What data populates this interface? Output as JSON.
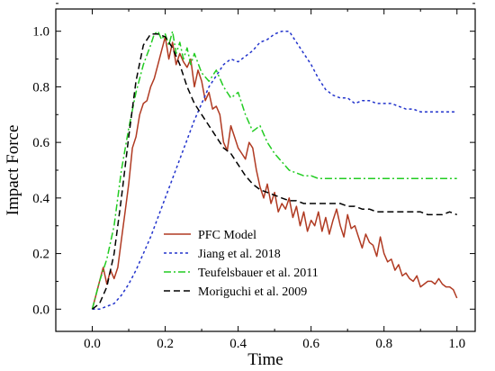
{
  "chart_data": {
    "type": "line",
    "title": "",
    "xlabel": "Time",
    "ylabel": "Impact Force",
    "xlim": [
      -0.1,
      1.05
    ],
    "ylim": [
      -0.08,
      1.08
    ],
    "xticks": [
      0.0,
      0.2,
      0.4,
      0.6,
      0.8,
      1.0
    ],
    "xtick_labels": [
      "0.0",
      "0.2",
      "0.4",
      "0.6",
      "0.8",
      "1.0"
    ],
    "yticks": [
      0.0,
      0.2,
      0.4,
      0.6,
      0.8,
      1.0
    ],
    "ytick_labels": [
      "0.0",
      "0.2",
      "0.4",
      "0.6",
      "0.8",
      "1.0"
    ],
    "grid": false,
    "legend_position": "bottom-center",
    "series": [
      {
        "name": "PFC Model",
        "color": "#b03a22",
        "dash": "solid",
        "x": [
          0.0,
          0.01,
          0.02,
          0.03,
          0.04,
          0.05,
          0.06,
          0.07,
          0.08,
          0.09,
          0.1,
          0.11,
          0.12,
          0.13,
          0.14,
          0.15,
          0.16,
          0.17,
          0.18,
          0.19,
          0.2,
          0.21,
          0.22,
          0.23,
          0.24,
          0.25,
          0.26,
          0.27,
          0.28,
          0.29,
          0.3,
          0.31,
          0.32,
          0.33,
          0.34,
          0.35,
          0.36,
          0.37,
          0.38,
          0.39,
          0.4,
          0.41,
          0.42,
          0.43,
          0.44,
          0.45,
          0.46,
          0.47,
          0.48,
          0.49,
          0.5,
          0.51,
          0.52,
          0.53,
          0.54,
          0.55,
          0.56,
          0.57,
          0.58,
          0.59,
          0.6,
          0.61,
          0.62,
          0.63,
          0.64,
          0.65,
          0.66,
          0.67,
          0.68,
          0.69,
          0.7,
          0.71,
          0.72,
          0.73,
          0.74,
          0.75,
          0.76,
          0.77,
          0.78,
          0.79,
          0.8,
          0.81,
          0.82,
          0.83,
          0.84,
          0.85,
          0.86,
          0.87,
          0.88,
          0.89,
          0.9,
          0.91,
          0.92,
          0.93,
          0.94,
          0.95,
          0.96,
          0.97,
          0.98,
          0.99,
          1.0
        ],
        "y": [
          0.0,
          0.05,
          0.1,
          0.15,
          0.09,
          0.14,
          0.11,
          0.15,
          0.25,
          0.35,
          0.45,
          0.58,
          0.62,
          0.7,
          0.74,
          0.75,
          0.8,
          0.83,
          0.88,
          0.93,
          0.98,
          0.9,
          0.96,
          0.88,
          0.92,
          0.89,
          0.87,
          0.9,
          0.8,
          0.86,
          0.82,
          0.75,
          0.78,
          0.72,
          0.73,
          0.7,
          0.6,
          0.57,
          0.66,
          0.62,
          0.58,
          0.56,
          0.54,
          0.6,
          0.58,
          0.5,
          0.44,
          0.4,
          0.45,
          0.38,
          0.42,
          0.35,
          0.38,
          0.36,
          0.4,
          0.33,
          0.37,
          0.3,
          0.35,
          0.28,
          0.32,
          0.3,
          0.35,
          0.28,
          0.33,
          0.27,
          0.32,
          0.36,
          0.3,
          0.26,
          0.34,
          0.29,
          0.3,
          0.26,
          0.22,
          0.27,
          0.24,
          0.23,
          0.19,
          0.26,
          0.2,
          0.17,
          0.18,
          0.14,
          0.16,
          0.12,
          0.13,
          0.11,
          0.1,
          0.12,
          0.08,
          0.09,
          0.1,
          0.1,
          0.09,
          0.11,
          0.09,
          0.08,
          0.08,
          0.07,
          0.04
        ]
      },
      {
        "name": "Jiang et al. 2018",
        "color": "#2233cc",
        "dash": "3,3",
        "x": [
          0.0,
          0.02,
          0.04,
          0.06,
          0.08,
          0.1,
          0.12,
          0.14,
          0.16,
          0.18,
          0.2,
          0.22,
          0.24,
          0.26,
          0.28,
          0.3,
          0.32,
          0.34,
          0.36,
          0.38,
          0.4,
          0.42,
          0.44,
          0.46,
          0.48,
          0.5,
          0.52,
          0.54,
          0.56,
          0.58,
          0.6,
          0.62,
          0.64,
          0.66,
          0.68,
          0.7,
          0.72,
          0.74,
          0.76,
          0.78,
          0.8,
          0.82,
          0.84,
          0.86,
          0.88,
          0.9,
          0.92,
          0.94,
          0.96,
          0.98,
          1.0
        ],
        "y": [
          0.0,
          0.0,
          0.01,
          0.02,
          0.05,
          0.09,
          0.14,
          0.2,
          0.26,
          0.33,
          0.4,
          0.47,
          0.54,
          0.61,
          0.68,
          0.74,
          0.8,
          0.84,
          0.88,
          0.9,
          0.89,
          0.91,
          0.93,
          0.96,
          0.97,
          0.99,
          1.0,
          1.0,
          0.96,
          0.92,
          0.88,
          0.83,
          0.79,
          0.77,
          0.76,
          0.76,
          0.74,
          0.75,
          0.75,
          0.74,
          0.74,
          0.74,
          0.73,
          0.72,
          0.72,
          0.71,
          0.71,
          0.71,
          0.71,
          0.71,
          0.71
        ]
      },
      {
        "name": "Teufelsbauer et al. 2011",
        "color": "#22cc22",
        "dash": "8,3,2,3",
        "x": [
          0.0,
          0.02,
          0.04,
          0.06,
          0.08,
          0.1,
          0.12,
          0.14,
          0.16,
          0.17,
          0.18,
          0.19,
          0.2,
          0.21,
          0.22,
          0.23,
          0.24,
          0.25,
          0.26,
          0.27,
          0.28,
          0.3,
          0.32,
          0.34,
          0.36,
          0.38,
          0.4,
          0.42,
          0.44,
          0.46,
          0.48,
          0.5,
          0.52,
          0.54,
          0.56,
          0.58,
          0.6,
          0.62,
          0.64,
          0.66,
          0.68,
          0.7,
          0.75,
          0.8,
          0.85,
          0.9,
          0.95,
          1.0
        ],
        "y": [
          0.0,
          0.1,
          0.18,
          0.3,
          0.5,
          0.65,
          0.78,
          0.88,
          0.95,
          0.99,
          1.0,
          0.97,
          0.99,
          0.95,
          1.0,
          0.92,
          0.96,
          0.9,
          0.94,
          0.88,
          0.92,
          0.85,
          0.82,
          0.86,
          0.8,
          0.76,
          0.78,
          0.7,
          0.64,
          0.66,
          0.6,
          0.56,
          0.53,
          0.5,
          0.49,
          0.48,
          0.48,
          0.47,
          0.47,
          0.47,
          0.47,
          0.47,
          0.47,
          0.47,
          0.47,
          0.47,
          0.47,
          0.47
        ]
      },
      {
        "name": "Moriguchi et al. 2009",
        "color": "#000000",
        "dash": "7,4",
        "x": [
          0.0,
          0.02,
          0.04,
          0.06,
          0.08,
          0.1,
          0.12,
          0.14,
          0.16,
          0.18,
          0.2,
          0.22,
          0.24,
          0.26,
          0.28,
          0.3,
          0.32,
          0.34,
          0.36,
          0.38,
          0.4,
          0.42,
          0.44,
          0.46,
          0.48,
          0.5,
          0.52,
          0.54,
          0.56,
          0.58,
          0.6,
          0.62,
          0.64,
          0.66,
          0.68,
          0.7,
          0.72,
          0.74,
          0.76,
          0.78,
          0.8,
          0.82,
          0.84,
          0.86,
          0.88,
          0.9,
          0.92,
          0.94,
          0.96,
          0.98,
          1.0
        ],
        "y": [
          0.0,
          0.02,
          0.08,
          0.2,
          0.4,
          0.62,
          0.82,
          0.95,
          0.99,
          0.99,
          0.98,
          0.94,
          0.88,
          0.8,
          0.74,
          0.7,
          0.66,
          0.62,
          0.58,
          0.56,
          0.52,
          0.48,
          0.45,
          0.43,
          0.42,
          0.41,
          0.4,
          0.39,
          0.39,
          0.38,
          0.38,
          0.38,
          0.38,
          0.38,
          0.38,
          0.37,
          0.37,
          0.36,
          0.36,
          0.35,
          0.35,
          0.35,
          0.35,
          0.35,
          0.35,
          0.35,
          0.34,
          0.34,
          0.34,
          0.35,
          0.34
        ]
      }
    ]
  }
}
